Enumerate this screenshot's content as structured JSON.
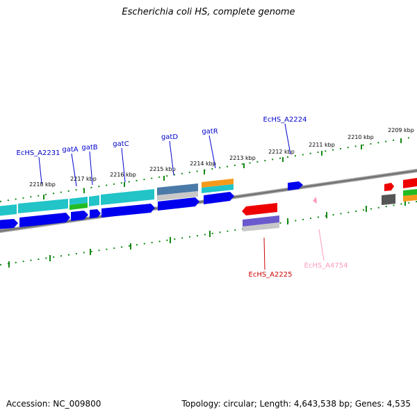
{
  "title": "Escherichia coli HS, complete genome",
  "footer": {
    "accession": "Accession: NC_009800",
    "summary": "Topology: circular; Length: 4,643,538 bp; Genes: 4,535"
  },
  "ticks": [
    "2218 kbp",
    "2217 kbp",
    "2216 kbp",
    "2215 kbp",
    "2214 kbp",
    "2213 kbp",
    "2212 kbp",
    "2211 kbp",
    "2210 kbp",
    "2209 kbp"
  ],
  "gene_labels": [
    {
      "text": "EcHS_A2231",
      "color": "#0000cc"
    },
    {
      "text": "gatA",
      "color": "#0000cc"
    },
    {
      "text": "gatB",
      "color": "#0000cc"
    },
    {
      "text": "gatC",
      "color": "#0000cc"
    },
    {
      "text": "gatD",
      "color": "#0000cc"
    },
    {
      "text": "gatR",
      "color": "#0000cc"
    },
    {
      "text": "EcHS_A2224",
      "color": "#0000cc"
    },
    {
      "text": "EcHS_A2225",
      "color": "#cc0000"
    },
    {
      "text": "EcHS_A4754",
      "color": "#ff99bb"
    }
  ],
  "colors": {
    "cds_blue": "#0000ee",
    "cds_red": "#ee0000",
    "cyan": "#22c4c8",
    "backbone": "#888888",
    "tick_green": "#118811",
    "orange": "#f59a1a",
    "green": "#22bb22",
    "purple": "#6a5acd",
    "gray": "#c8c8c8",
    "dark_gray": "#555555",
    "steel": "#4a7aa8",
    "pink": "#ff99bb"
  }
}
